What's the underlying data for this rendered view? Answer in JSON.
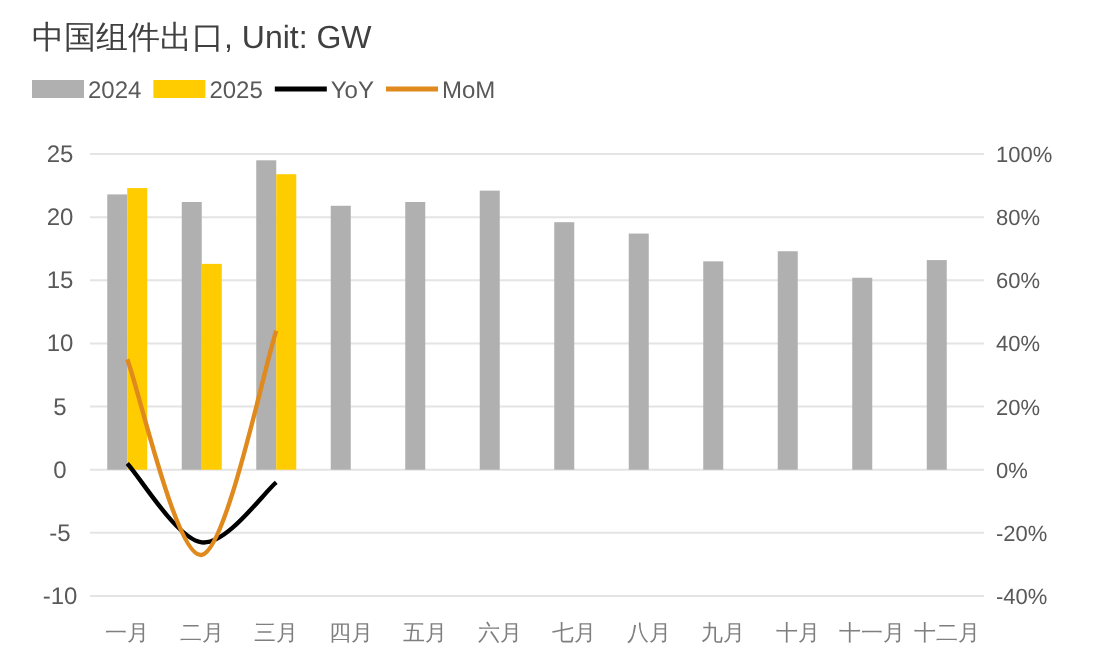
{
  "chart_data": {
    "type": "bar",
    "title": "中国组件出口, Unit: GW",
    "categories": [
      "一月",
      "二月",
      "三月",
      "四月",
      "五月",
      "六月",
      "七月",
      "八月",
      "九月",
      "十月",
      "十一月",
      "十二月"
    ],
    "series": [
      {
        "name": "2024",
        "color": "#b0b0b0",
        "values": [
          21.8,
          21.2,
          24.5,
          20.9,
          21.2,
          22.1,
          19.6,
          18.7,
          16.5,
          17.3,
          15.2,
          16.6
        ]
      },
      {
        "name": "2025",
        "color": "#ffcc00",
        "values": [
          22.3,
          16.3,
          23.4,
          null,
          null,
          null,
          null,
          null,
          null,
          null,
          null,
          null
        ]
      },
      {
        "name": "YoY",
        "type": "line",
        "axis": "y2",
        "color": "#000000",
        "values": [
          2,
          -23,
          -4,
          null,
          null,
          null,
          null,
          null,
          null,
          null,
          null,
          null
        ]
      },
      {
        "name": "MoM",
        "type": "line",
        "axis": "y2",
        "color": "#e08a1e",
        "values": [
          35,
          -27,
          44,
          null,
          null,
          null,
          null,
          null,
          null,
          null,
          null,
          null
        ]
      }
    ],
    "ylim": [
      -10,
      25
    ],
    "yticks": [
      -10,
      -5,
      0,
      5,
      10,
      15,
      20,
      25
    ],
    "y2lim": [
      -40,
      100
    ],
    "y2ticks": [
      {
        "value": -40,
        "label": "-40%"
      },
      {
        "value": -20,
        "label": "-20%"
      },
      {
        "value": 0,
        "label": "0%"
      },
      {
        "value": 20,
        "label": "20%"
      },
      {
        "value": 40,
        "label": "40%"
      },
      {
        "value": 60,
        "label": "60%"
      },
      {
        "value": 80,
        "label": "80%"
      },
      {
        "value": 100,
        "label": "100%"
      }
    ],
    "grid": "y",
    "legend": "top left",
    "marker": "none",
    "line_style": "solid"
  }
}
